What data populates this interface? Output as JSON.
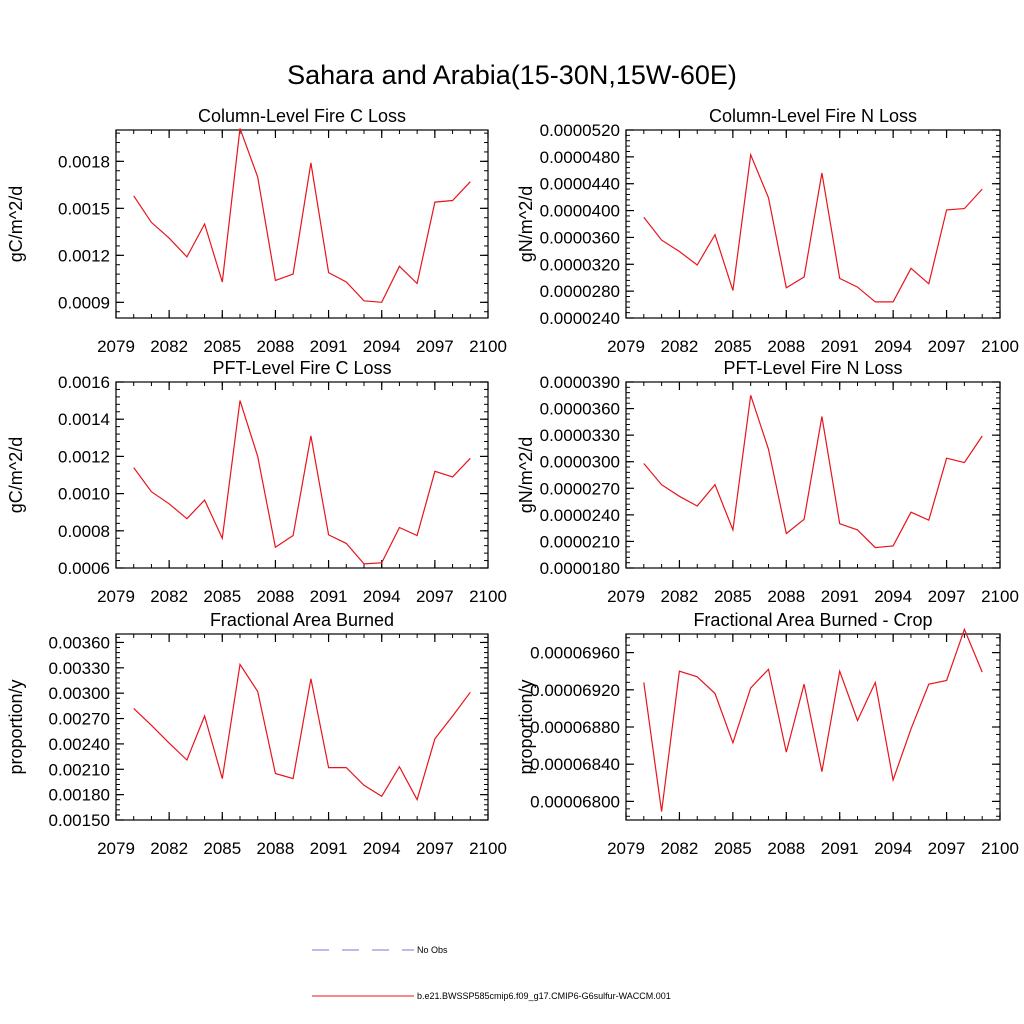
{
  "figure_title": "Sahara and Arabia(15-30N,15W-60E)",
  "series_color": "#e8141c",
  "legend": [
    {
      "label": "No Obs",
      "style": "dashed",
      "color": "#7a7ad0"
    },
    {
      "label": "b.e21.BWSSP585cmip6.f09_g17.CMIP6-G6sulfur-WACCM.001",
      "style": "solid",
      "color": "#e8141c"
    }
  ],
  "chart_data": [
    {
      "type": "line",
      "title": "Column-Level Fire C Loss",
      "ylabel": "gC/m^2/d",
      "xlim": [
        2079,
        2100
      ],
      "ylim": [
        0.0008,
        0.002
      ],
      "xticks": [
        "2079",
        "2082",
        "2085",
        "2088",
        "2091",
        "2094",
        "2097",
        "2100"
      ],
      "yticks": [
        "0.0009",
        "0.0012",
        "0.0015",
        "0.0018"
      ],
      "x": [
        2080,
        2081,
        2082,
        2083,
        2084,
        2085,
        2086,
        2087,
        2088,
        2089,
        2090,
        2091,
        2092,
        2093,
        2094,
        2095,
        2096,
        2097,
        2098,
        2099
      ],
      "values": [
        0.00158,
        0.00141,
        0.00131,
        0.00119,
        0.0014,
        0.00103,
        0.00201,
        0.0017,
        0.00104,
        0.00108,
        0.00179,
        0.00109,
        0.00103,
        0.00091,
        0.0009,
        0.00113,
        0.00102,
        0.00154,
        0.00155,
        0.00167
      ]
    },
    {
      "type": "line",
      "title": "Column-Level Fire N Loss",
      "ylabel": "gN/m^2/d",
      "xlim": [
        2079,
        2100
      ],
      "ylim": [
        2.4e-05,
        5.2e-05
      ],
      "xticks": [
        "2079",
        "2082",
        "2085",
        "2088",
        "2091",
        "2094",
        "2097",
        "2100"
      ],
      "yticks": [
        "0.0000240",
        "0.0000280",
        "0.0000320",
        "0.0000360",
        "0.0000400",
        "0.0000440",
        "0.0000480",
        "0.0000520"
      ],
      "x": [
        2080,
        2081,
        2082,
        2083,
        2084,
        2085,
        2086,
        2087,
        2088,
        2089,
        2090,
        2091,
        2092,
        2093,
        2094,
        2095,
        2096,
        2097,
        2098,
        2099
      ],
      "values": [
        3.9e-05,
        3.56e-05,
        3.39e-05,
        3.19e-05,
        3.64e-05,
        2.81e-05,
        4.83e-05,
        4.19e-05,
        2.85e-05,
        3.01e-05,
        4.56e-05,
        2.99e-05,
        2.86e-05,
        2.64e-05,
        2.64e-05,
        3.14e-05,
        2.91e-05,
        4.01e-05,
        4.03e-05,
        4.32e-05
      ]
    },
    {
      "type": "line",
      "title": "PFT-Level Fire C Loss",
      "ylabel": "gC/m^2/d",
      "xlim": [
        2079,
        2100
      ],
      "ylim": [
        0.0006,
        0.0016
      ],
      "xticks": [
        "2079",
        "2082",
        "2085",
        "2088",
        "2091",
        "2094",
        "2097",
        "2100"
      ],
      "yticks": [
        "0.0006",
        "0.0008",
        "0.0010",
        "0.0012",
        "0.0014",
        "0.0016"
      ],
      "x": [
        2080,
        2081,
        2082,
        2083,
        2084,
        2085,
        2086,
        2087,
        2088,
        2089,
        2090,
        2091,
        2092,
        2093,
        2094,
        2095,
        2096,
        2097,
        2098,
        2099
      ],
      "values": [
        0.00114,
        0.00101,
        0.000945,
        0.000865,
        0.000965,
        0.00076,
        0.0015,
        0.0012,
        0.000712,
        0.000775,
        0.00131,
        0.000778,
        0.000732,
        0.000622,
        0.000628,
        0.000818,
        0.000775,
        0.00112,
        0.00109,
        0.00119
      ]
    },
    {
      "type": "line",
      "title": "PFT-Level Fire N Loss",
      "ylabel": "gN/m^2/d",
      "xlim": [
        2079,
        2100
      ],
      "ylim": [
        1.8e-05,
        3.9e-05
      ],
      "xticks": [
        "2079",
        "2082",
        "2085",
        "2088",
        "2091",
        "2094",
        "2097",
        "2100"
      ],
      "yticks": [
        "0.0000180",
        "0.0000210",
        "0.0000240",
        "0.0000270",
        "0.0000300",
        "0.0000330",
        "0.0000360",
        "0.0000390"
      ],
      "x": [
        2080,
        2081,
        2082,
        2083,
        2084,
        2085,
        2086,
        2087,
        2088,
        2089,
        2090,
        2091,
        2092,
        2093,
        2094,
        2095,
        2096,
        2097,
        2098,
        2099
      ],
      "values": [
        2.98e-05,
        2.74e-05,
        2.61e-05,
        2.5e-05,
        2.74e-05,
        2.23e-05,
        3.75e-05,
        3.14e-05,
        2.19e-05,
        2.35e-05,
        3.51e-05,
        2.3e-05,
        2.23e-05,
        2.03e-05,
        2.05e-05,
        2.43e-05,
        2.34e-05,
        3.04e-05,
        2.99e-05,
        3.29e-05
      ]
    },
    {
      "type": "line",
      "title": "Fractional Area Burned",
      "ylabel": "proportion/y",
      "xlim": [
        2079,
        2100
      ],
      "ylim": [
        0.0015,
        0.0037
      ],
      "xticks": [
        "2079",
        "2082",
        "2085",
        "2088",
        "2091",
        "2094",
        "2097",
        "2100"
      ],
      "yticks": [
        "0.00150",
        "0.00180",
        "0.00210",
        "0.00240",
        "0.00270",
        "0.00300",
        "0.00330",
        "0.00360"
      ],
      "x": [
        2080,
        2081,
        2082,
        2083,
        2084,
        2085,
        2086,
        2087,
        2088,
        2089,
        2090,
        2091,
        2092,
        2093,
        2094,
        2095,
        2096,
        2097,
        2098,
        2099
      ],
      "values": [
        0.00282,
        0.00262,
        0.00241,
        0.00221,
        0.00273,
        0.00199,
        0.00334,
        0.00302,
        0.00205,
        0.00199,
        0.00317,
        0.00212,
        0.00212,
        0.00191,
        0.00178,
        0.00213,
        0.00174,
        0.00246,
        0.00273,
        0.00301
      ]
    },
    {
      "type": "line",
      "title": "Fractional Area Burned - Crop",
      "ylabel": "proportion/y",
      "xlim": [
        2079,
        2100
      ],
      "ylim": [
        6.78e-05,
        6.98e-05
      ],
      "xticks": [
        "2079",
        "2082",
        "2085",
        "2088",
        "2091",
        "2094",
        "2097",
        "2100"
      ],
      "yticks": [
        "0.00006800",
        "0.00006840",
        "0.00006880",
        "0.00006920",
        "0.00006960"
      ],
      "x": [
        2080,
        2081,
        2082,
        2083,
        2084,
        2085,
        2086,
        2087,
        2088,
        2089,
        2090,
        2091,
        2092,
        2093,
        2094,
        2095,
        2096,
        2097,
        2098,
        2099
      ],
      "values": [
        6.928e-05,
        6.789e-05,
        6.94e-05,
        6.934e-05,
        6.916e-05,
        6.863e-05,
        6.922e-05,
        6.942e-05,
        6.853e-05,
        6.926e-05,
        6.832e-05,
        6.94e-05,
        6.887e-05,
        6.928e-05,
        6.823e-05,
        6.878e-05,
        6.926e-05,
        6.93e-05,
        6.985e-05,
        6.939e-05
      ]
    }
  ]
}
